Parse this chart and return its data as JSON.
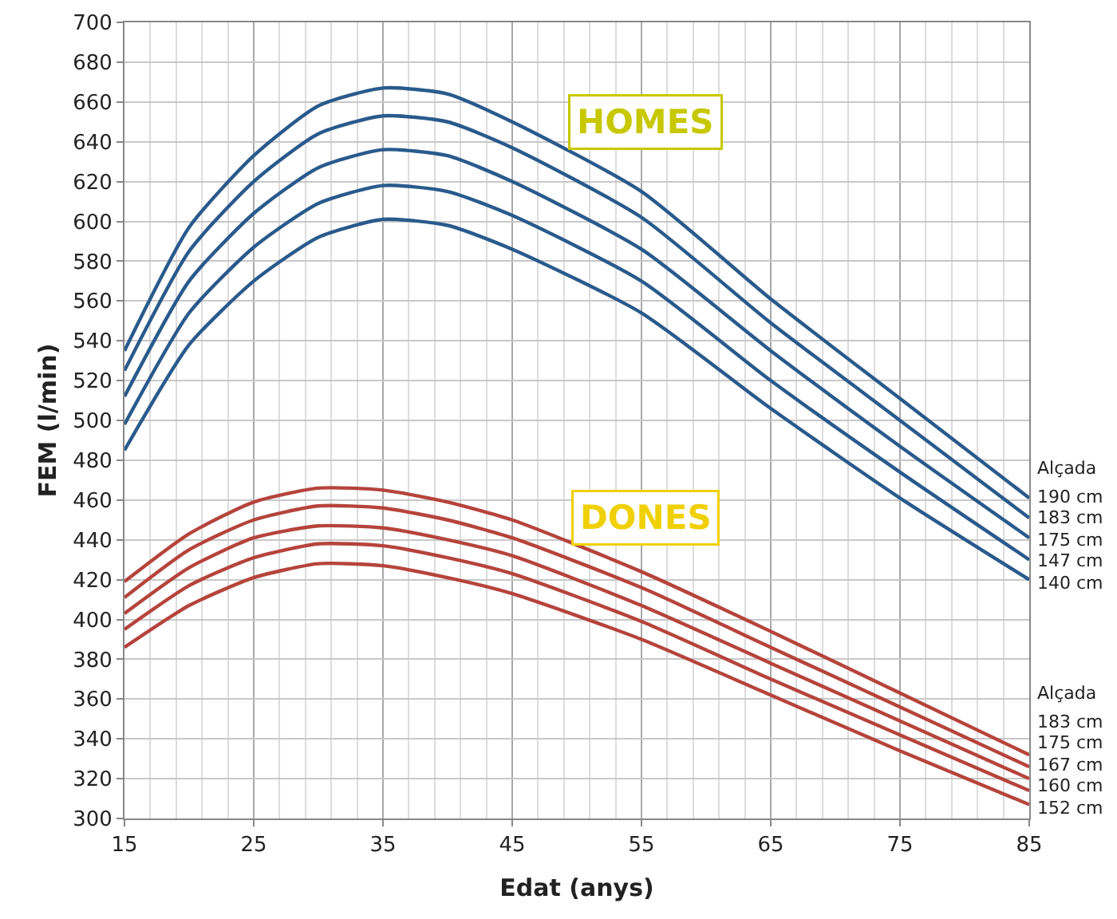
{
  "chart_data": {
    "type": "line",
    "xlabel": "Edat (anys)",
    "ylabel": "FEM (l/min)",
    "x": [
      15,
      20,
      25,
      30,
      35,
      40,
      45,
      55,
      65,
      75,
      85
    ],
    "series": [
      {
        "name": "190 cm",
        "color": "#2a5a8c",
        "values": [
          535,
          597,
          633,
          658,
          667,
          664,
          650,
          615,
          561,
          511,
          461
        ]
      },
      {
        "name": "183 cm",
        "color": "#2a5a8c",
        "values": [
          525,
          585,
          620,
          644,
          653,
          650,
          637,
          602,
          549,
          500,
          451
        ]
      },
      {
        "name": "175 cm",
        "color": "#2a5a8c",
        "values": [
          512,
          570,
          604,
          627,
          636,
          633,
          620,
          586,
          535,
          487,
          441
        ]
      },
      {
        "name": "147 cm",
        "color": "#2a5a8c",
        "values": [
          498,
          554,
          587,
          609,
          618,
          615,
          603,
          570,
          520,
          474,
          430
        ]
      },
      {
        "name": "140 cm",
        "color": "#2a5a8c",
        "values": [
          485,
          538,
          570,
          592,
          601,
          598,
          586,
          554,
          506,
          461,
          420
        ]
      },
      {
        "name": "183 cm",
        "color": "#b5443c",
        "values": [
          419,
          443,
          459,
          466,
          465,
          459,
          450,
          424,
          394,
          363,
          332
        ]
      },
      {
        "name": "175 cm",
        "color": "#b5443c",
        "values": [
          411,
          435,
          450,
          457,
          456,
          450,
          441,
          416,
          386,
          356,
          326
        ]
      },
      {
        "name": "167 cm",
        "color": "#b5443c",
        "values": [
          403,
          426,
          441,
          447,
          446,
          440,
          432,
          407,
          378,
          349,
          320
        ]
      },
      {
        "name": "160 cm",
        "color": "#b5443c",
        "values": [
          395,
          417,
          431,
          438,
          437,
          431,
          423,
          399,
          370,
          342,
          314
        ]
      },
      {
        "name": "152 cm",
        "color": "#b5443c",
        "values": [
          386,
          407,
          421,
          428,
          427,
          421,
          413,
          390,
          362,
          334,
          307
        ]
      }
    ],
    "annotations": [
      "HOMES",
      "DONES",
      "Alçada",
      "Alçada"
    ],
    "xlim": [
      15,
      85
    ],
    "xticks": [
      15,
      25,
      35,
      45,
      55,
      65,
      75,
      85
    ],
    "ylim": [
      300,
      700
    ],
    "yticks": [
      300,
      320,
      340,
      360,
      380,
      400,
      420,
      440,
      460,
      480,
      500,
      520,
      540,
      560,
      580,
      600,
      620,
      640,
      660,
      680,
      700
    ],
    "grid": true,
    "legend": false,
    "marker": "none",
    "line_style": "solid"
  }
}
